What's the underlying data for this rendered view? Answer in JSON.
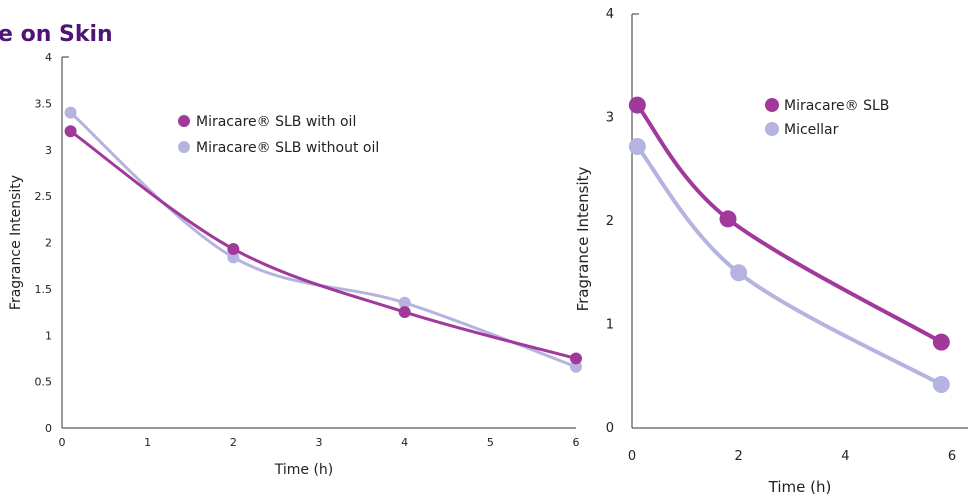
{
  "page": {
    "title": "e on Skin"
  },
  "chart_data": [
    {
      "type": "line",
      "xlabel": "Time (h)",
      "ylabel": "Fragrance Intensity",
      "xlim": [
        0,
        6
      ],
      "ylim": [
        0,
        4
      ],
      "x_ticks": [
        "0",
        "1",
        "2",
        "3",
        "4",
        "5",
        "6"
      ],
      "y_ticks": [
        "0",
        "0.5",
        "1",
        "1.5",
        "2",
        "2.5",
        "3",
        "3.5",
        "4"
      ],
      "grid": false,
      "legend_position": "top-right",
      "series": [
        {
          "name": "Miracare® SLB with oil",
          "color": "#a0399a",
          "x": [
            0.1,
            2,
            4,
            6
          ],
          "y": [
            3.2,
            1.93,
            1.25,
            0.75
          ]
        },
        {
          "name": "Miracare® SLB without oil",
          "color": "#b5b3e0",
          "x": [
            0.1,
            2,
            4,
            6
          ],
          "y": [
            3.4,
            1.84,
            1.35,
            0.66
          ]
        }
      ]
    },
    {
      "type": "line",
      "xlabel": "Time (h)",
      "ylabel": "Fragrance Intensity",
      "xlim": [
        0,
        6.3
      ],
      "ylim": [
        0,
        4
      ],
      "x_ticks": [
        "0",
        "2",
        "4",
        "6"
      ],
      "y_ticks": [
        "0",
        "1",
        "2",
        "3",
        "4"
      ],
      "grid": false,
      "legend_position": "top-right",
      "series": [
        {
          "name": "Miracare® SLB",
          "color": "#a0399a",
          "x": [
            0.1,
            1.8,
            5.8
          ],
          "y": [
            3.12,
            2.02,
            0.83
          ]
        },
        {
          "name": "Micellar",
          "color": "#b5b3e0",
          "x": [
            0.1,
            2.0,
            5.8
          ],
          "y": [
            2.72,
            1.5,
            0.42
          ]
        }
      ]
    }
  ]
}
